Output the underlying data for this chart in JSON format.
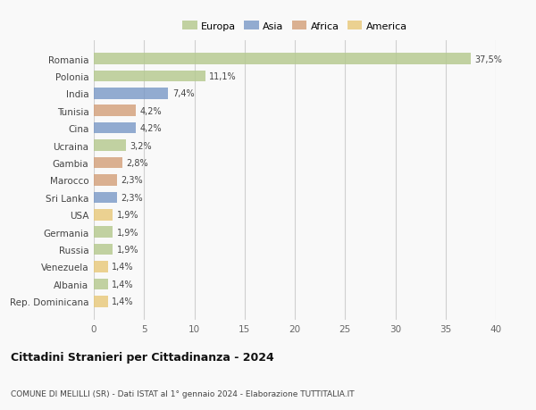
{
  "countries": [
    "Romania",
    "Polonia",
    "India",
    "Tunisia",
    "Cina",
    "Ucraina",
    "Gambia",
    "Marocco",
    "Sri Lanka",
    "USA",
    "Germania",
    "Russia",
    "Venezuela",
    "Albania",
    "Rep. Dominicana"
  ],
  "values": [
    37.5,
    11.1,
    7.4,
    4.2,
    4.2,
    3.2,
    2.8,
    2.3,
    2.3,
    1.9,
    1.9,
    1.9,
    1.4,
    1.4,
    1.4
  ],
  "labels": [
    "37,5%",
    "11,1%",
    "7,4%",
    "4,2%",
    "4,2%",
    "3,2%",
    "2,8%",
    "2,3%",
    "2,3%",
    "1,9%",
    "1,9%",
    "1,9%",
    "1,4%",
    "1,4%",
    "1,4%"
  ],
  "colors": [
    "#b5c98e",
    "#b5c98e",
    "#7b9ac7",
    "#d4a07a",
    "#7b9ac7",
    "#b5c98e",
    "#d4a07a",
    "#d4a07a",
    "#7b9ac7",
    "#e8c97a",
    "#b5c98e",
    "#b5c98e",
    "#e8c97a",
    "#b5c98e",
    "#e8c97a"
  ],
  "continent_colors": {
    "Europa": "#b5c98e",
    "Asia": "#7b9ac7",
    "Africa": "#d4a07a",
    "America": "#e8c97a"
  },
  "xlim": [
    0,
    40
  ],
  "xticks": [
    0,
    5,
    10,
    15,
    20,
    25,
    30,
    35,
    40
  ],
  "title": "Cittadini Stranieri per Cittadinanza - 2024",
  "subtitle": "COMUNE DI MELILLI (SR) - Dati ISTAT al 1° gennaio 2024 - Elaborazione TUTTITALIA.IT",
  "bg_color": "#f9f9f9",
  "grid_color": "#d0d0d0",
  "bar_height": 0.65
}
